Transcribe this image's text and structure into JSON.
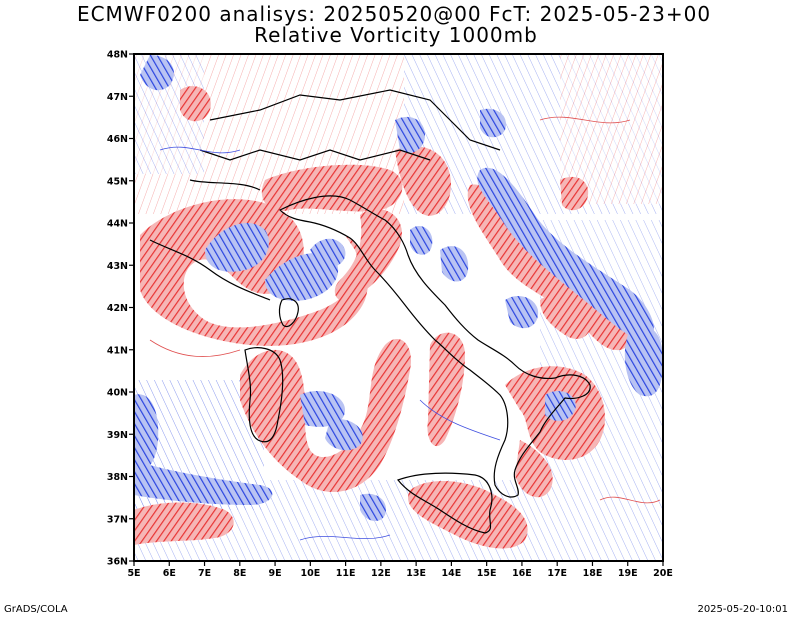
{
  "title_line1": "ECMWF0200 analisys: 20250520@00 FcT: 2025-05-23+00",
  "title_line2": "Relative Vorticity 1000mb",
  "footer_left": "GrADS/COLA",
  "footer_right": "2025-05-20-10:01",
  "lat_ticks": [
    "48N",
    "47N",
    "46N",
    "45N",
    "44N",
    "43N",
    "42N",
    "41N",
    "40N",
    "39N",
    "38N",
    "37N",
    "36N"
  ],
  "lon_ticks": [
    "5E",
    "6E",
    "7E",
    "8E",
    "9E",
    "10E",
    "11E",
    "12E",
    "13E",
    "14E",
    "15E",
    "16E",
    "17E",
    "18E",
    "19E",
    "20E"
  ],
  "colors": {
    "positive": "#f03c3c",
    "negative": "#3050e6",
    "coast": "#000000"
  }
}
